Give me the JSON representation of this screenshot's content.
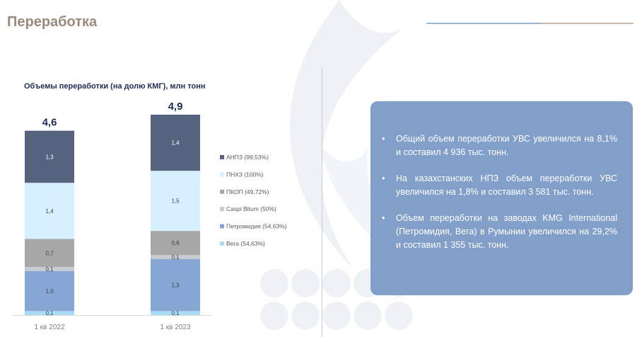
{
  "page_title": "Переработка",
  "colors": {
    "title": "#9a8a7c",
    "accent_blue": "#9db6d6",
    "accent_tan": "#c7b9ab",
    "box_bg": "#829fc9",
    "navy": "#1f2e55"
  },
  "chart_data": {
    "type": "bar",
    "stacked": true,
    "title": "Объемы переработки (на долю КМГ), млн тонн",
    "categories": [
      "1 кв 2022",
      "1 кв 2023"
    ],
    "totals": [
      "4,6",
      "4,9"
    ],
    "series": [
      {
        "name": "Вега (54,63%)",
        "color": "#a9dcf7",
        "values": [
          0.1,
          0.1
        ],
        "labels": [
          "0,1",
          "0,1"
        ]
      },
      {
        "name": "Петромидия (54,63%)",
        "color": "#86a7d3",
        "values": [
          1.0,
          1.3
        ],
        "labels": [
          "1,0",
          "1,3"
        ]
      },
      {
        "name": "Caspi Bitum (50%)",
        "color": "#c7cbd2",
        "values": [
          0.1,
          0.1
        ],
        "labels": [
          "0,1",
          "0,1"
        ]
      },
      {
        "name": "ПКОП (49,72%)",
        "color": "#a7a7a7",
        "values": [
          0.7,
          0.6
        ],
        "labels": [
          "0,7",
          "0,6"
        ]
      },
      {
        "name": "ПНХЗ (100%)",
        "color": "#d6f0ff",
        "values": [
          1.4,
          1.5
        ],
        "labels": [
          "1,4",
          "1,5"
        ]
      },
      {
        "name": "АНПЗ (99,53%)",
        "color": "#55637f",
        "values": [
          1.3,
          1.4
        ],
        "labels": [
          "1,3",
          "1,4"
        ]
      }
    ],
    "legend_order": [
      "АНПЗ (99,53%)",
      "ПНХЗ (100%)",
      "ПКОП (49,72%)",
      "Caspi Bitum (50%)",
      "Петромидия (54,63%)",
      "Вега (54,63%)"
    ]
  },
  "bullets": [
    "Общий объем переработки УВС увеличился на 8,1% и составил 4 936 тыс. тонн.",
    "На казахстанских НПЗ объем переработки УВС увеличился на 1,8% и составил 3 581 тыс. тонн.",
    "Объем переработки на заводах KMG International (Петромидия, Вега) в Румынии увеличился на 29,2% и составил 1 355 тыс. тонн."
  ]
}
